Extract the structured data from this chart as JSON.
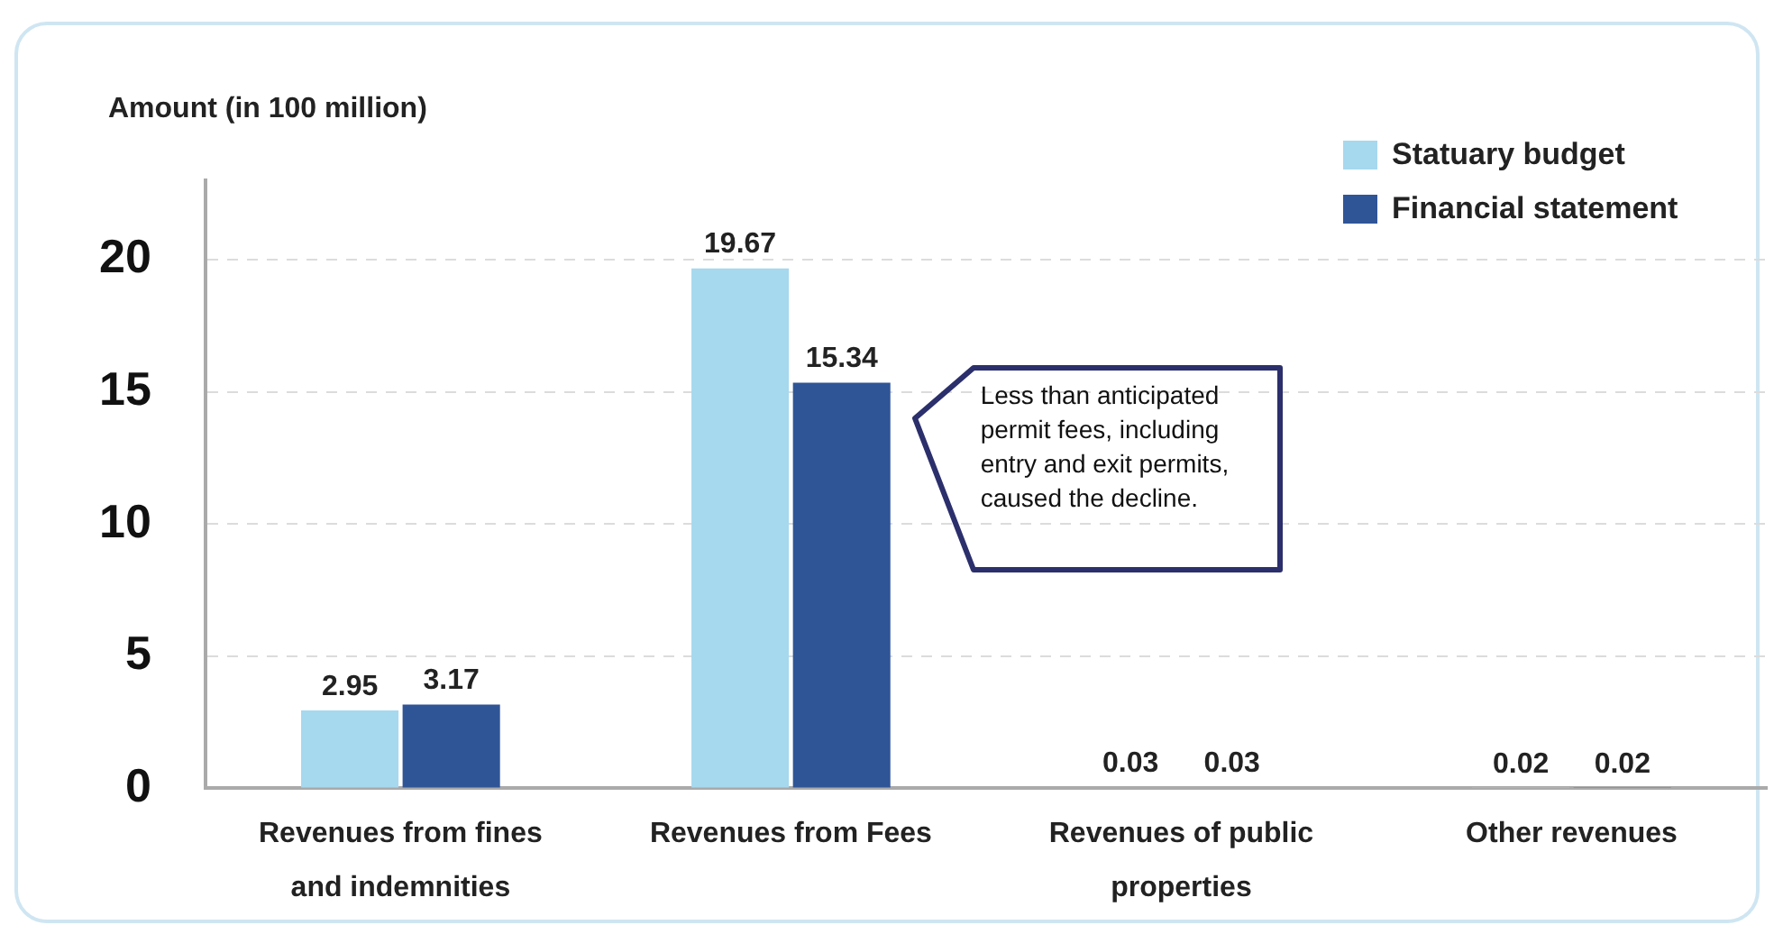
{
  "chart_data": {
    "type": "bar",
    "ylabel": "Amount (in 100 million)",
    "categories": [
      "Revenues from fines and indemnities",
      "Revenues from Fees",
      "Revenues of public properties",
      "Other revenues"
    ],
    "series": [
      {
        "name": "Statuary budget",
        "color": "#a6d8ee",
        "values": [
          2.95,
          19.67,
          0.03,
          0.02
        ]
      },
      {
        "name": "Financial statement",
        "color": "#2f5597",
        "values": [
          3.17,
          15.34,
          0.03,
          0.02
        ]
      }
    ],
    "ylim": [
      0,
      23
    ],
    "yticks": [
      0,
      5,
      10,
      15,
      20
    ],
    "grid": "y",
    "legend": "top right",
    "data_labels": true,
    "annotations": [
      "Less than anticipated permit fees, including entry and exit permits, caused the decline."
    ]
  }
}
